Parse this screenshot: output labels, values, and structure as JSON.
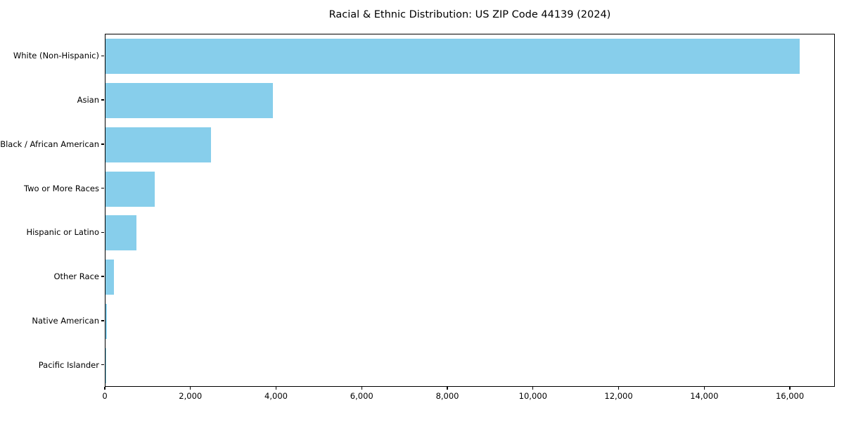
{
  "title": "Racial & Ethnic Distribution: US ZIP Code 44139 (2024)",
  "colors": {
    "bar": "#87CEEB",
    "axis": "#000000",
    "background": "#ffffff"
  },
  "chart_data": {
    "type": "bar",
    "orientation": "horizontal",
    "title": "Racial & Ethnic Distribution: US ZIP Code 44139 (2024)",
    "categories": [
      "White (Non-Hispanic)",
      "Asian",
      "Black / African American",
      "Two or More Races",
      "Hispanic or Latino",
      "Other Race",
      "Native American",
      "Pacific Islander"
    ],
    "values": [
      16210,
      3910,
      2460,
      1150,
      730,
      195,
      25,
      6
    ],
    "xlabel": "",
    "ylabel": "",
    "xlim": [
      0,
      17050
    ],
    "x_tick_values": [
      0,
      2000,
      4000,
      6000,
      8000,
      10000,
      12000,
      14000,
      16000
    ],
    "x_tick_labels": [
      "0",
      "2,000",
      "4,000",
      "6,000",
      "8,000",
      "10,000",
      "12,000",
      "14,000",
      "16,000"
    ],
    "grid": false,
    "legend": false,
    "bar_color": "#87CEEB"
  }
}
